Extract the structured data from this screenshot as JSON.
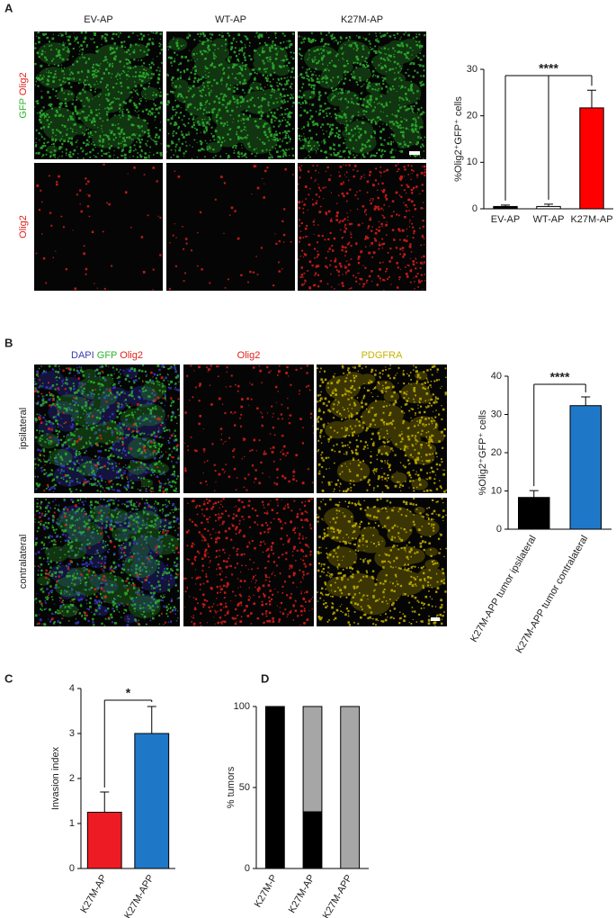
{
  "panels": [
    {
      "letter": "A",
      "columns": [
        [
          {
            "text": "EV-AP",
            "color": "#222222"
          }
        ],
        [
          {
            "text": "WT-AP",
            "color": "#222222"
          }
        ],
        [
          {
            "text": "K27M-AP",
            "color": "#222222"
          }
        ]
      ],
      "rows": [
        [
          {
            "text": "GFP",
            "color": "#2fb52f"
          },
          {
            "text": "Olig2",
            "color": "#e0201b"
          }
        ],
        [
          {
            "text": "Olig2",
            "color": "#e0201b"
          }
        ]
      ]
    },
    {
      "letter": "B",
      "columns": [
        [
          {
            "text": "DAPI",
            "color": "#3a3ab0"
          },
          {
            "text": "GFP",
            "color": "#2fb52f"
          },
          {
            "text": "Olig2",
            "color": "#e0201b"
          }
        ],
        [
          {
            "text": "Olig2",
            "color": "#e0201b"
          }
        ],
        [
          {
            "text": "PDGFRA",
            "color": "#c8b400"
          }
        ]
      ],
      "rows": [
        [
          {
            "text": "ipsilateral",
            "color": "#222222"
          }
        ],
        [
          {
            "text": "contralateral",
            "color": "#222222"
          }
        ]
      ]
    },
    {
      "letter": "C"
    },
    {
      "letter": "D"
    }
  ],
  "chart_data": [
    {
      "type": "bar",
      "categories": [
        "EV-AP",
        "WT-AP",
        "K27M-AP"
      ],
      "series": [
        {
          "colors": [
            "#000000",
            "#ffffff",
            "#ff0000"
          ],
          "values": [
            0.5,
            0.5,
            21.7
          ],
          "errors": [
            0.3,
            0.5,
            3.8
          ]
        }
      ],
      "ylim": [
        0,
        30
      ],
      "yticks": [
        0,
        10,
        20,
        30
      ],
      "ylabel": "%Olig2⁺GFP⁺ cells",
      "annotation": "****"
    },
    {
      "type": "bar",
      "categories": [
        "K27M-APP tumor ipsilateral",
        "K27M-APP tumor contralateral"
      ],
      "series": [
        {
          "colors": [
            "#000000",
            "#1f77c8"
          ],
          "values": [
            8.3,
            32.3
          ],
          "errors": [
            1.8,
            2.3
          ]
        }
      ],
      "ylim": [
        0,
        40
      ],
      "yticks": [
        0,
        10,
        20,
        30,
        40
      ],
      "ylabel": "%Olig2⁺GFP⁺ cells",
      "annotation": "****"
    },
    {
      "type": "bar",
      "categories": [
        "K27M-AP",
        "K27M-APP"
      ],
      "series": [
        {
          "colors": [
            "#ed1c24",
            "#1f77c8"
          ],
          "values": [
            1.25,
            3.0
          ],
          "errors": [
            0.45,
            0.6
          ]
        }
      ],
      "ylim": [
        0,
        4
      ],
      "yticks": [
        0,
        1,
        2,
        3,
        4
      ],
      "ylabel": "Invasion index",
      "annotation": "*"
    },
    {
      "type": "stacked-bar",
      "categories": [
        "K27M-P",
        "K27M-AP",
        "K27M-APP"
      ],
      "series": [
        {
          "color": "#000000",
          "values": [
            100,
            35,
            0
          ]
        },
        {
          "color": "#a6a6a6",
          "values": [
            0,
            65,
            100
          ]
        }
      ],
      "ylim": [
        0,
        100
      ],
      "yticks": [
        0,
        50,
        100
      ],
      "ylabel": "% tumors"
    }
  ]
}
